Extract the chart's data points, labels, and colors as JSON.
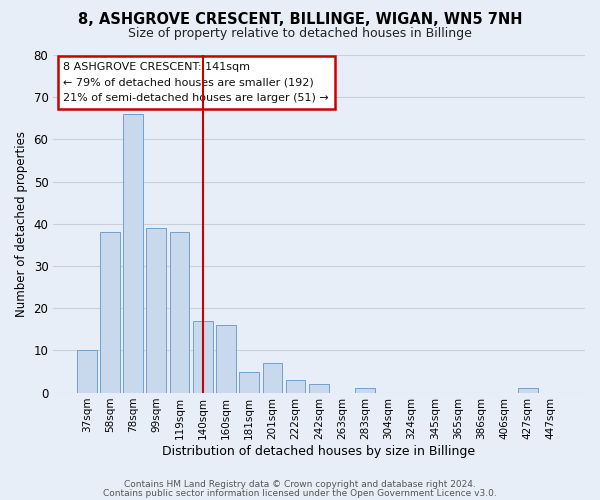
{
  "title": "8, ASHGROVE CRESCENT, BILLINGE, WIGAN, WN5 7NH",
  "subtitle": "Size of property relative to detached houses in Billinge",
  "xlabel": "Distribution of detached houses by size in Billinge",
  "ylabel": "Number of detached properties",
  "bar_labels": [
    "37sqm",
    "58sqm",
    "78sqm",
    "99sqm",
    "119sqm",
    "140sqm",
    "160sqm",
    "181sqm",
    "201sqm",
    "222sqm",
    "242sqm",
    "263sqm",
    "283sqm",
    "304sqm",
    "324sqm",
    "345sqm",
    "365sqm",
    "386sqm",
    "406sqm",
    "427sqm",
    "447sqm"
  ],
  "bar_values": [
    10,
    38,
    66,
    39,
    38,
    17,
    16,
    5,
    7,
    3,
    2,
    0,
    1,
    0,
    0,
    0,
    0,
    0,
    0,
    1,
    0
  ],
  "bar_color": "#c8d9ee",
  "bar_edge_color": "#6fa0cc",
  "highlight_bar_index": 5,
  "highlight_color": "#cc0000",
  "ylim": [
    0,
    80
  ],
  "yticks": [
    0,
    10,
    20,
    30,
    40,
    50,
    60,
    70,
    80
  ],
  "annotation_title": "8 ASHGROVE CRESCENT: 141sqm",
  "annotation_line1": "← 79% of detached houses are smaller (192)",
  "annotation_line2": "21% of semi-detached houses are larger (51) →",
  "footer1": "Contains HM Land Registry data © Crown copyright and database right 2024.",
  "footer2": "Contains public sector information licensed under the Open Government Licence v3.0.",
  "background_color": "#e8eef8",
  "plot_bg_color": "#e8eef8",
  "grid_color": "#c8d0dc"
}
